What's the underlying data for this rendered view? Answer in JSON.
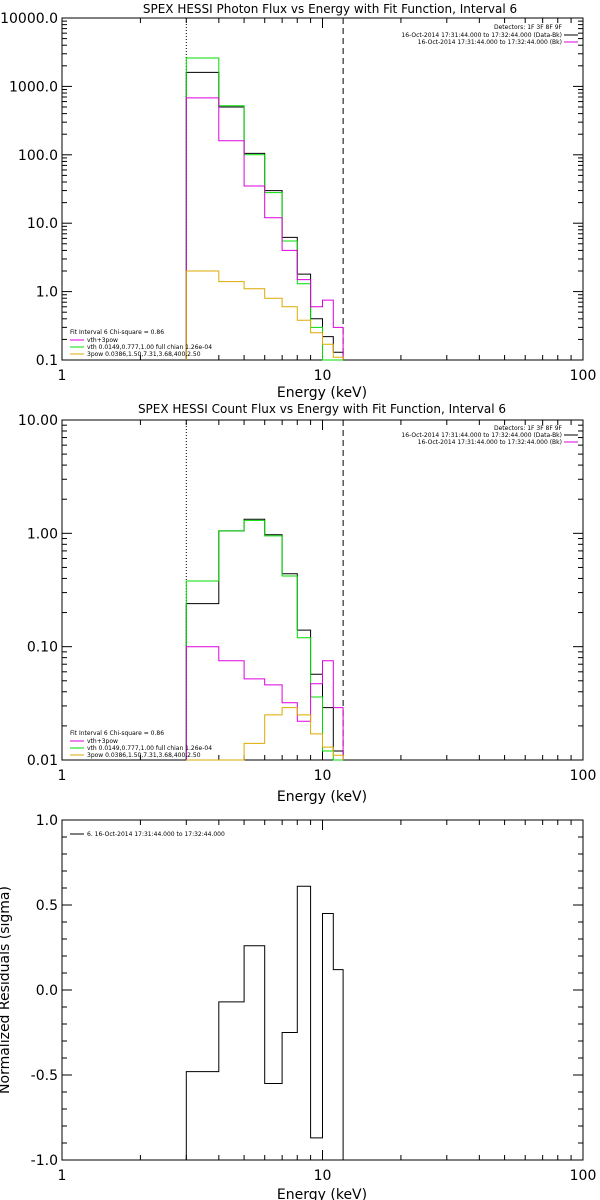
{
  "chart_data": [
    {
      "type": "line",
      "title": "SPEX HESSI Photon Flux vs Energy with Fit Function, Interval 6",
      "xlabel": "Energy (keV)",
      "ylabel": "",
      "x_scale": "log",
      "y_scale": "log",
      "xlim": [
        1,
        100
      ],
      "ylim": [
        0.1,
        10000
      ],
      "x_ticks": [
        {
          "v": 1,
          "label": "1"
        },
        {
          "v": 10,
          "label": "10"
        },
        {
          "v": 100,
          "label": "100"
        }
      ],
      "y_ticks": [
        {
          "v": 0.1,
          "label": "0.1"
        },
        {
          "v": 1,
          "label": "1.0"
        },
        {
          "v": 10,
          "label": "10.0"
        },
        {
          "v": 100,
          "label": "100.0"
        },
        {
          "v": 1000,
          "label": "1000.0"
        },
        {
          "v": 10000,
          "label": "10000.0"
        }
      ],
      "vlines": [
        {
          "x": 3.0,
          "style": "dotted"
        },
        {
          "x": 12.0,
          "style": "dashed"
        }
      ],
      "header": [
        "Detectors: 1F 3F 8F 9F",
        "16-Oct-2014 17:31:44.000 to 17:32:44.000 (Data-Bk)",
        "16-Oct-2014 17:31:44.000 to 17:32:44.000 (Bk)"
      ],
      "fit_info": [
        "Fit Interval  6    Chi-square = 0.86",
        "vth+3pow",
        "vth 0.0149,0.777,1.00  full chian 1.26e-04",
        "3pow 0.0386,1.50,7.31,3.68,400,2.50"
      ],
      "series": [
        {
          "color": "#000000",
          "edges": [
            3,
            4,
            5,
            6,
            7,
            8,
            9,
            10,
            11,
            12
          ],
          "values": [
            1600,
            500,
            105,
            30,
            6.2,
            1.8,
            0.4,
            0.22,
            0.13
          ]
        },
        {
          "color": "#00dd00",
          "edges": [
            3,
            4,
            5,
            6,
            7,
            8,
            9,
            10,
            11,
            12
          ],
          "values": [
            2600,
            520,
            100,
            28,
            5.5,
            1.3,
            0.3,
            0.09,
            0.08
          ]
        },
        {
          "color": "#dd00dd",
          "edges": [
            3,
            4,
            5,
            6,
            7,
            8,
            9,
            10,
            11,
            12
          ],
          "values": [
            680,
            160,
            35,
            12,
            4.0,
            1.5,
            0.6,
            0.75,
            0.3
          ]
        },
        {
          "color": "#ddaa00",
          "edges": [
            3,
            4,
            5,
            6,
            7,
            8,
            9,
            10,
            11,
            12
          ],
          "values": [
            2.0,
            1.4,
            1.1,
            0.8,
            0.6,
            0.38,
            0.25,
            0.17,
            0.11
          ]
        }
      ]
    },
    {
      "type": "line",
      "title": "SPEX HESSI Count Flux vs Energy with Fit Function, Interval 6",
      "xlabel": "Energy (keV)",
      "ylabel": "",
      "x_scale": "log",
      "y_scale": "log",
      "xlim": [
        1,
        100
      ],
      "ylim": [
        0.01,
        10
      ],
      "x_ticks": [
        {
          "v": 1,
          "label": "1"
        },
        {
          "v": 10,
          "label": "10"
        },
        {
          "v": 100,
          "label": "100"
        }
      ],
      "y_ticks": [
        {
          "v": 0.01,
          "label": "0.01"
        },
        {
          "v": 0.1,
          "label": "0.10"
        },
        {
          "v": 1,
          "label": "1.00"
        },
        {
          "v": 10,
          "label": "10.00"
        }
      ],
      "vlines": [
        {
          "x": 3.0,
          "style": "dotted"
        },
        {
          "x": 12.0,
          "style": "dashed"
        }
      ],
      "header": [
        "Detectors: 1F 3F 8F 9F",
        "16-Oct-2014 17:31:44.000 to 17:32:44.000 (Data-Bk)",
        "16-Oct-2014 17:31:44.000 to 17:32:44.000 (Bk)"
      ],
      "fit_info": [
        "Fit Interval  6    Chi-square = 0.86",
        "vth+3pow",
        "vth 0.0149,0.777,1.00  full chian 1.26e-04",
        "3pow 0.0386,1.50,7.31,3.68,400,2.50"
      ],
      "series": [
        {
          "color": "#000000",
          "edges": [
            3,
            4,
            5,
            6,
            7,
            8,
            9,
            10,
            11,
            12
          ],
          "values": [
            0.24,
            1.05,
            1.33,
            0.97,
            0.44,
            0.14,
            0.057,
            0.029,
            0.012
          ]
        },
        {
          "color": "#00dd00",
          "edges": [
            3,
            4,
            5,
            6,
            7,
            8,
            9,
            10,
            11,
            12
          ],
          "values": [
            0.38,
            1.05,
            1.3,
            0.95,
            0.42,
            0.12,
            0.036,
            0.012,
            0.01
          ]
        },
        {
          "color": "#dd00dd",
          "edges": [
            3,
            4,
            5,
            6,
            7,
            8,
            9,
            10,
            11,
            12
          ],
          "values": [
            0.1,
            0.075,
            0.052,
            0.046,
            0.032,
            0.022,
            0.047,
            0.075,
            0.029
          ]
        },
        {
          "color": "#ddaa00",
          "edges": [
            3,
            4,
            5,
            6,
            7,
            8,
            9,
            10,
            11,
            12
          ],
          "values": [
            0.01,
            0.01,
            0.014,
            0.025,
            0.029,
            0.025,
            0.017,
            0.013,
            0.011
          ]
        }
      ]
    },
    {
      "type": "line",
      "title": "",
      "xlabel": "Energy (keV)",
      "ylabel": "Normalized Residuals (sigma)",
      "x_scale": "log",
      "y_scale": "linear",
      "xlim": [
        1,
        100
      ],
      "ylim": [
        -1.0,
        1.0
      ],
      "x_ticks": [
        {
          "v": 1,
          "label": "1"
        },
        {
          "v": 10,
          "label": "10"
        },
        {
          "v": 100,
          "label": "100"
        }
      ],
      "y_ticks": [
        {
          "v": -1.0,
          "label": "-1.0"
        },
        {
          "v": -0.5,
          "label": "-0.5"
        },
        {
          "v": 0.0,
          "label": "0.0"
        },
        {
          "v": 0.5,
          "label": "0.5"
        },
        {
          "v": 1.0,
          "label": "1.0"
        }
      ],
      "legend": "6. 16-Oct-2014 17:31:44.000 to 17:32:44.000",
      "series": [
        {
          "color": "#000000",
          "edges": [
            3,
            4,
            5,
            6,
            7,
            8,
            9,
            10,
            11,
            12
          ],
          "values": [
            -0.48,
            -0.07,
            0.26,
            -0.55,
            -0.25,
            0.61,
            -0.87,
            0.45,
            0.12
          ]
        }
      ]
    }
  ]
}
